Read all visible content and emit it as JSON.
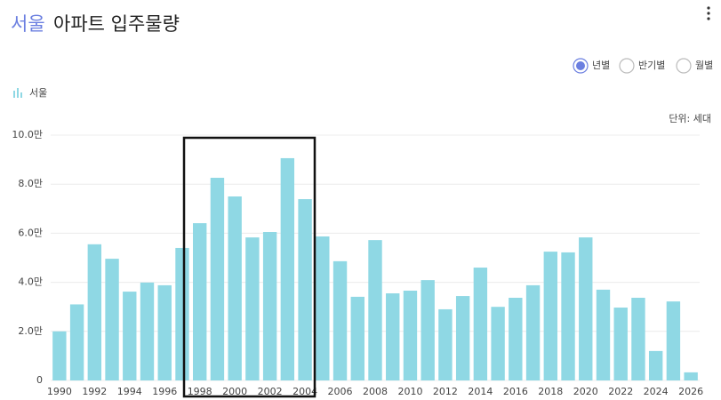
{
  "chart_data": {
    "type": "bar",
    "title_highlight": "서울",
    "title": "아파트 입주물량",
    "unit_label": "단위: 세대",
    "categories": [
      "1990",
      null,
      "1992",
      null,
      "1994",
      null,
      "1996",
      null,
      "1998",
      null,
      "2000",
      null,
      "2002",
      null,
      "2004",
      null,
      "2006",
      null,
      "2008",
      null,
      "2010",
      null,
      "2012",
      null,
      "2014",
      null,
      "2016",
      null,
      "2018",
      null,
      "2020",
      null,
      "2022",
      null,
      "2024",
      null,
      "2026"
    ],
    "series": [
      {
        "name": "서울",
        "color": "#8fd8e4",
        "values": [
          2.0,
          3.1,
          5.55,
          4.96,
          3.62,
          3.99,
          3.88,
          5.4,
          6.41,
          8.26,
          7.5,
          5.83,
          6.05,
          9.06,
          7.39,
          5.87,
          4.86,
          3.41,
          5.72,
          3.55,
          3.66,
          4.09,
          2.9,
          3.44,
          4.6,
          3.0,
          3.37,
          3.88,
          5.25,
          5.22,
          5.83,
          3.7,
          2.97,
          3.37,
          1.2,
          3.22,
          0.33
        ]
      }
    ],
    "ylim": [
      0,
      10
    ],
    "yticks": [
      0,
      {
        "value": 2,
        "label": "2.0만"
      },
      {
        "value": 4,
        "label": "4.0만"
      },
      {
        "value": 6,
        "label": "6.0만"
      },
      {
        "value": 8,
        "label": "8.0만"
      },
      {
        "value": 10,
        "label": "10.0만"
      }
    ],
    "grid": true
  },
  "controls": {
    "options": [
      "년별",
      "반기별",
      "월별"
    ],
    "selected": "년별"
  }
}
